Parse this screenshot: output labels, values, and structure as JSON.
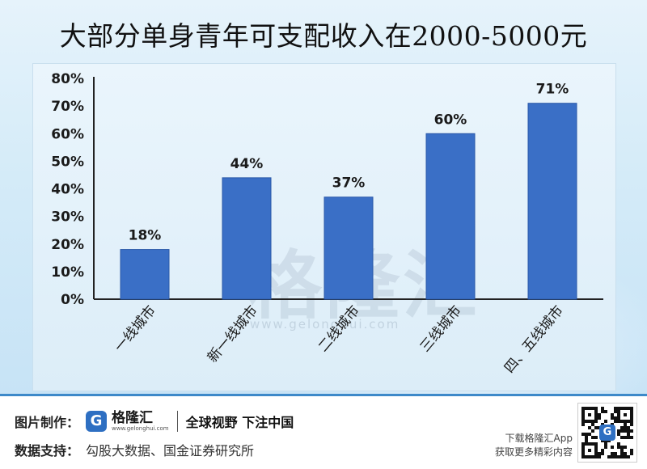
{
  "title": "大部分单身青年可支配收入在2000-5000元",
  "watermark": {
    "text": "格隆汇",
    "url": "www.gelonghui.com"
  },
  "colors": {
    "bar": "#3a6fc6",
    "bar_edge": "#2a58a8",
    "axis": "#222222",
    "background": "#dcedf8"
  },
  "chart_data": {
    "type": "bar",
    "title": "",
    "xlabel": "",
    "ylabel": "",
    "categories": [
      "一线城市",
      "新一线城市",
      "二线城市",
      "三线城市",
      "四、五线城市"
    ],
    "values": [
      18,
      44,
      37,
      60,
      71
    ],
    "data_labels": [
      "18%",
      "44%",
      "37%",
      "60%",
      "71%"
    ],
    "yticks": [
      "0%",
      "10%",
      "20%",
      "30%",
      "40%",
      "50%",
      "60%",
      "70%",
      "80%"
    ],
    "ylim": [
      0,
      80
    ],
    "unit": "%",
    "grid": false,
    "legend": "none"
  },
  "footer": {
    "image_credit_label": "图片制作：",
    "logo_icon": "G",
    "logo_text": "格隆汇",
    "logo_url": "www.gelonghui.com",
    "slogan": "全球视野 下注中国",
    "data_source_label": "数据支持：",
    "data_source": "勾股大数据、国金证券研究所",
    "app_line1": "下载格隆汇App",
    "app_line2": "获取更多精彩内容",
    "qr_icon": "G"
  }
}
